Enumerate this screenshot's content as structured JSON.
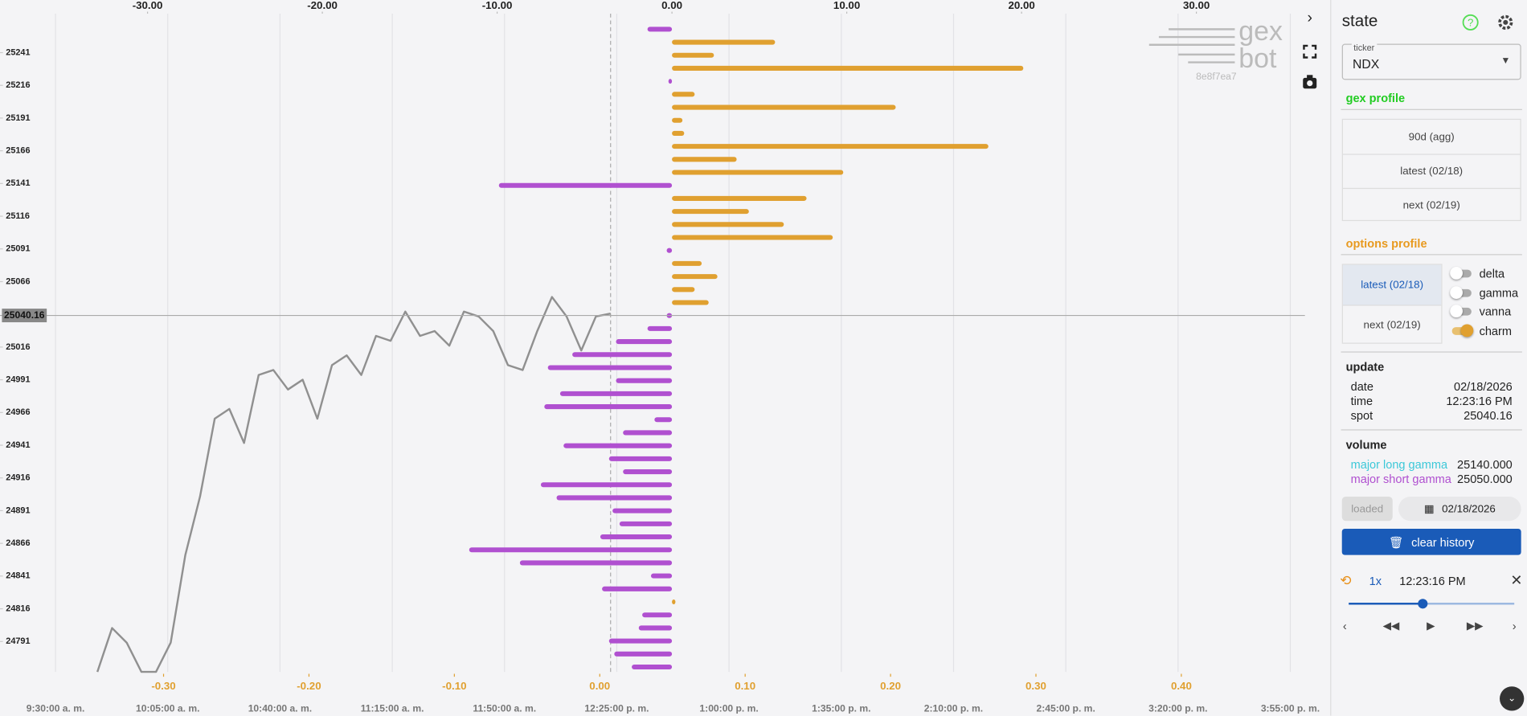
{
  "chart_data": {
    "type": "bar",
    "orientation": "horizontal",
    "xlim": [
      -38.44,
      36.21
    ],
    "xticks": [
      {
        "value": -30,
        "label": "-30.00"
      },
      {
        "value": -20,
        "label": "-20.00"
      },
      {
        "value": -10,
        "label": "-10.00"
      },
      {
        "value": 0,
        "label": "0.00"
      },
      {
        "value": 10,
        "label": "10.00"
      },
      {
        "value": 20,
        "label": "20.00"
      },
      {
        "value": 30,
        "label": "30.00"
      }
    ],
    "x2lim": [
      -0.4125,
      0.485
    ],
    "x2ticks": [
      {
        "value": -0.3,
        "label": "-0.30"
      },
      {
        "value": -0.2,
        "label": "-0.20"
      },
      {
        "value": -0.1,
        "label": "-0.10"
      },
      {
        "value": 0,
        "label": "0.00"
      },
      {
        "value": 0.1,
        "label": "0.10"
      },
      {
        "value": 0.2,
        "label": "0.20"
      },
      {
        "value": 0.3,
        "label": "0.30"
      },
      {
        "value": 0.4,
        "label": "0.40"
      }
    ],
    "ylim": [
      24767.8,
      25258.9
    ],
    "yticks": [
      25241,
      25216,
      25191,
      25166,
      25141,
      25116,
      25091,
      25066,
      25016,
      24991,
      24966,
      24941,
      24916,
      24891,
      24866,
      24841,
      24816,
      24791
    ],
    "time_ticks": [
      "9:30:00 a. m.",
      "10:05:00 a. m.",
      "10:40:00 a. m.",
      "11:15:00 a. m.",
      "11:50:00 a. m.",
      "12:25:00 p. m.",
      "1:00:00 p. m.",
      "1:35:00 p. m.",
      "2:10:00 p. m.",
      "2:45:00 p. m.",
      "3:20:00 p. m.",
      "3:55:00 p. m."
    ],
    "positive_color": "#e0a030",
    "negative_color": "#b050d0",
    "values": [
      -1.4,
      5.9,
      2.4,
      20.1,
      -0.2,
      1.3,
      12.8,
      0.6,
      0.7,
      18.1,
      3.7,
      9.8,
      -9.9,
      7.7,
      4.4,
      6.4,
      9.2,
      -0.3,
      1.7,
      2.6,
      1.3,
      2.1,
      -0.3,
      -1.4,
      -3.2,
      -5.7,
      -7.1,
      -3.2,
      -6.4,
      -7.3,
      -1.0,
      -2.8,
      -6.2,
      -3.6,
      -2.8,
      -7.5,
      -6.6,
      -3.4,
      -3.0,
      -4.1,
      -11.6,
      -8.7,
      -1.2,
      -4.0,
      0.2,
      -1.7,
      -1.9,
      -3.6,
      -3.3,
      -2.3
    ],
    "price_line": {
      "color": "#909090",
      "values": [
        24767.8,
        24801.3,
        24790.1,
        24767.8,
        24767.8,
        24790.1,
        24857.1,
        24901.7,
        24961.3,
        24968.7,
        24942.7,
        24994.7,
        24998.5,
        24983.6,
        24991.0,
        24961.3,
        25002.2,
        25009.6,
        24994.7,
        25024.5,
        25020.8,
        25043.1,
        25024.5,
        25028.2,
        25017.1,
        25043.1,
        25039.4,
        25028.2,
        25002.2,
        24998.5,
        25028.2,
        25054.3,
        25039.4,
        25013.4,
        25039.4,
        25041.6
      ]
    },
    "spot": {
      "value": 25040.16,
      "label": "25040.16"
    }
  },
  "logo": {
    "line1": "gex",
    "line2": "bot",
    "build": "8e8f7ea7"
  },
  "panel": {
    "title": "state",
    "ticker_label": "ticker",
    "ticker": "NDX",
    "gex_profile": {
      "title": "gex profile",
      "buttons": [
        "90d (agg)",
        "latest (02/18)",
        "next (02/19)"
      ]
    },
    "options_profile": {
      "title": "options profile",
      "buttons": [
        "latest (02/18)",
        "next (02/19)"
      ],
      "toggles": [
        {
          "label": "delta",
          "on": false
        },
        {
          "label": "gamma",
          "on": false
        },
        {
          "label": "vanna",
          "on": false
        },
        {
          "label": "charm",
          "on": true
        }
      ]
    },
    "update": {
      "title": "update",
      "rows": [
        [
          "date",
          "02/18/2026"
        ],
        [
          "time",
          "12:23:16 PM"
        ],
        [
          "spot",
          "25040.16"
        ]
      ]
    },
    "volume": {
      "title": "volume",
      "rows": [
        [
          "major long gamma",
          "25140.000"
        ],
        [
          "major short gamma",
          "25050.000"
        ]
      ]
    },
    "loaded": "loaded",
    "date_button": "02/18/2026",
    "clear_history": "clear history",
    "speed": "1x",
    "playback_time": "12:23:16 PM"
  }
}
